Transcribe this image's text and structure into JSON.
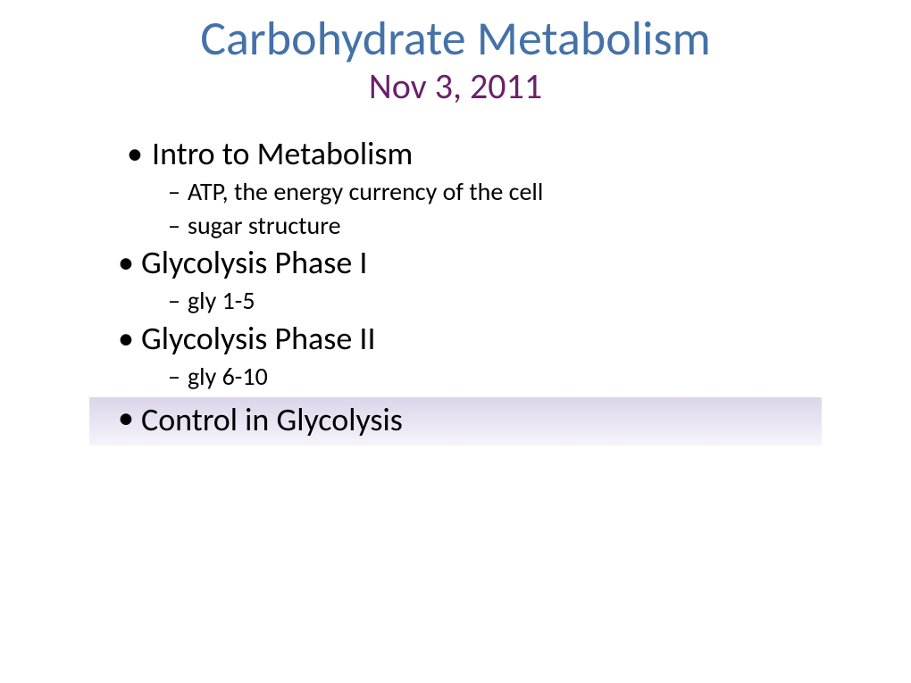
{
  "title": {
    "text": "Carbohydrate Metabolism",
    "color": "#4472a8",
    "fontsize": 54
  },
  "subtitle": {
    "text": "Nov 3, 2011",
    "color": "#6b1f6b",
    "fontsize": 40
  },
  "bullets": [
    {
      "level": 1,
      "text": " Intro to Metabolism",
      "highlighted": false,
      "style": "first"
    },
    {
      "level": 2,
      "text": "ATP, the energy currency of the cell",
      "highlighted": false,
      "style": "tight"
    },
    {
      "level": 2,
      "text": "sugar structure",
      "highlighted": false,
      "style": "tight"
    },
    {
      "level": 1,
      "text": "Glycolysis Phase I",
      "highlighted": false,
      "style": "tight"
    },
    {
      "level": 2,
      "text": " gly 1-5",
      "highlighted": false,
      "style": "spaced"
    },
    {
      "level": 1,
      "text": "Glycolysis Phase II",
      "highlighted": false,
      "style": "tight"
    },
    {
      "level": 2,
      "text": " gly 6-10",
      "highlighted": false,
      "style": "spaced"
    },
    {
      "level": 1,
      "text": "Control in Glycolysis",
      "highlighted": true,
      "style": "tight"
    }
  ],
  "highlight": {
    "gradient_top": "#dcd4ea",
    "gradient_bottom": "#f6f4fa"
  },
  "background_color": "#ffffff",
  "text_color": "#000000"
}
